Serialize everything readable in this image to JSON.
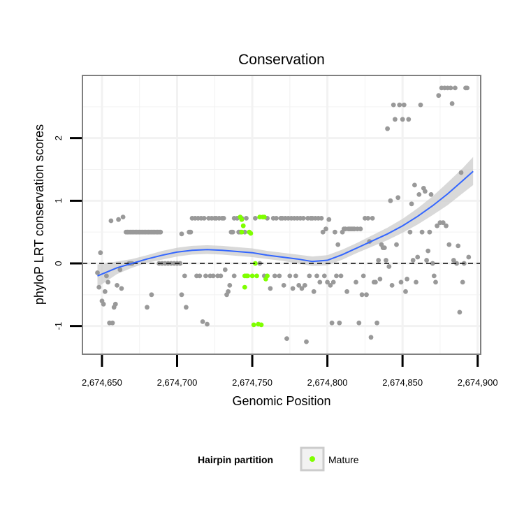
{
  "chart_data": {
    "type": "scatter",
    "title": "Conservation",
    "xlabel": "Genomic Position",
    "ylabel": "phyloP LRT conservation scores",
    "xlim": [
      2674637,
      2674902
    ],
    "ylim": [
      -1.45,
      3.0
    ],
    "x_ticks": [
      2674650,
      2674700,
      2674750,
      2674800,
      2674850,
      2674900
    ],
    "x_tick_labels": [
      "2,674,650",
      "2,674,700",
      "2,674,750",
      "2,674,800",
      "2,674,850",
      "2,674,900"
    ],
    "y_ticks": [
      -1,
      0,
      1,
      2
    ],
    "y_tick_labels": [
      "-1",
      "0",
      "1",
      "2"
    ],
    "grid": true,
    "reference_line": {
      "y": 0,
      "style": "dashed",
      "color": "#000000"
    },
    "colors": {
      "other_points": "#999999",
      "mature_points": "#7fff00",
      "smooth_line": "#3366ff",
      "confidence_band": "#cccccc",
      "panel_border": "#7f7f7f",
      "grid": "#f2f2f2"
    },
    "legend": {
      "title": "Hairpin partition",
      "placement": "bottom",
      "entries": [
        {
          "label": "Mature",
          "color": "#7fff00"
        }
      ]
    },
    "series": [
      {
        "name": "Other",
        "color": "#999999",
        "points": [
          [
            2674647,
            -0.15
          ],
          [
            2674648,
            -0.38
          ],
          [
            2674649,
            0.17
          ],
          [
            2674650,
            -0.6
          ],
          [
            2674651,
            -0.65
          ],
          [
            2674652,
            -0.45
          ],
          [
            2674653,
            -0.2
          ],
          [
            2674654,
            -0.3
          ],
          [
            2674655,
            -0.95
          ],
          [
            2674656,
            0.68
          ],
          [
            2674657,
            -0.95
          ],
          [
            2674658,
            -0.7
          ],
          [
            2674659,
            -0.65
          ],
          [
            2674660,
            -0.35
          ],
          [
            2674661,
            0.7
          ],
          [
            2674662,
            -0.1
          ],
          [
            2674663,
            -0.4
          ],
          [
            2674664,
            0.74
          ],
          [
            2674666,
            0.5
          ],
          [
            2674667,
            0.5
          ],
          [
            2674668,
            0.5
          ],
          [
            2674669,
            0.5
          ],
          [
            2674670,
            0.5
          ],
          [
            2674671,
            0.5
          ],
          [
            2674672,
            0.5
          ],
          [
            2674673,
            0.5
          ],
          [
            2674674,
            0.5
          ],
          [
            2674675,
            0.5
          ],
          [
            2674676,
            0.5
          ],
          [
            2674677,
            0.5
          ],
          [
            2674678,
            0.5
          ],
          [
            2674679,
            0.5
          ],
          [
            2674680,
            0.5
          ],
          [
            2674681,
            0.5
          ],
          [
            2674682,
            0.5
          ],
          [
            2674683,
            0.5
          ],
          [
            2674684,
            0.5
          ],
          [
            2674685,
            0.5
          ],
          [
            2674686,
            0.5
          ],
          [
            2674687,
            0.5
          ],
          [
            2674688,
            0.5
          ],
          [
            2674689,
            0.5
          ],
          [
            2674668,
            0.0
          ],
          [
            2674669,
            0.0
          ],
          [
            2674670,
            0.0
          ],
          [
            2674680,
            -0.7
          ],
          [
            2674683,
            -0.5
          ],
          [
            2674688,
            0.0
          ],
          [
            2674690,
            0.0
          ],
          [
            2674692,
            0.0
          ],
          [
            2674694,
            0.0
          ],
          [
            2674696,
            0.0
          ],
          [
            2674698,
            0.0
          ],
          [
            2674700,
            0.0
          ],
          [
            2674702,
            0.0
          ],
          [
            2674703,
            0.47
          ],
          [
            2674703,
            -0.5
          ],
          [
            2674705,
            -0.2
          ],
          [
            2674706,
            -0.7
          ],
          [
            2674708,
            0.5
          ],
          [
            2674709,
            0.5
          ],
          [
            2674710,
            0.72
          ],
          [
            2674712,
            0.72
          ],
          [
            2674713,
            -0.2
          ],
          [
            2674714,
            0.72
          ],
          [
            2674715,
            -0.2
          ],
          [
            2674716,
            0.72
          ],
          [
            2674717,
            -0.93
          ],
          [
            2674718,
            0.72
          ],
          [
            2674719,
            -0.2
          ],
          [
            2674720,
            -0.97
          ],
          [
            2674721,
            0.72
          ],
          [
            2674722,
            -0.2
          ],
          [
            2674723,
            0.72
          ],
          [
            2674724,
            -0.2
          ],
          [
            2674725,
            0.72
          ],
          [
            2674726,
            0.72
          ],
          [
            2674727,
            -0.2
          ],
          [
            2674728,
            0.72
          ],
          [
            2674729,
            -0.2
          ],
          [
            2674730,
            0.72
          ],
          [
            2674731,
            0.72
          ],
          [
            2674732,
            -0.1
          ],
          [
            2674733,
            -0.5
          ],
          [
            2674734,
            -0.45
          ],
          [
            2674735,
            -0.35
          ],
          [
            2674736,
            0.5
          ],
          [
            2674737,
            0.5
          ],
          [
            2674738,
            0.72
          ],
          [
            2674738,
            -0.2
          ],
          [
            2674740,
            0.72
          ],
          [
            2674741,
            0.5
          ],
          [
            2674742,
            0.5
          ],
          [
            2674743,
            0.72
          ],
          [
            2674745,
            0.5
          ],
          [
            2674746,
            0.72
          ],
          [
            2674752,
            0.72
          ],
          [
            2674755,
            0.0
          ],
          [
            2674758,
            -0.2
          ],
          [
            2674760,
            0.72
          ],
          [
            2674762,
            -0.4
          ],
          [
            2674764,
            0.72
          ],
          [
            2674765,
            -0.2
          ],
          [
            2674766,
            0.72
          ],
          [
            2674768,
            -0.2
          ],
          [
            2674769,
            0.72
          ],
          [
            2674770,
            0.72
          ],
          [
            2674771,
            -0.35
          ],
          [
            2674772,
            0.72
          ],
          [
            2674773,
            -1.2
          ],
          [
            2674774,
            0.72
          ],
          [
            2674775,
            -0.2
          ],
          [
            2674776,
            0.72
          ],
          [
            2674777,
            -0.4
          ],
          [
            2674778,
            0.72
          ],
          [
            2674779,
            -0.2
          ],
          [
            2674780,
            0.72
          ],
          [
            2674781,
            -0.35
          ],
          [
            2674782,
            0.72
          ],
          [
            2674783,
            -0.4
          ],
          [
            2674784,
            0.72
          ],
          [
            2674785,
            -0.35
          ],
          [
            2674786,
            -1.25
          ],
          [
            2674787,
            0.72
          ],
          [
            2674788,
            -0.2
          ],
          [
            2674789,
            0.72
          ],
          [
            2674790,
            0.72
          ],
          [
            2674791,
            -0.45
          ],
          [
            2674792,
            0.72
          ],
          [
            2674793,
            -0.2
          ],
          [
            2674794,
            0.72
          ],
          [
            2674795,
            -0.3
          ],
          [
            2674796,
            0.72
          ],
          [
            2674797,
            0.5
          ],
          [
            2674798,
            -0.2
          ],
          [
            2674799,
            0.55
          ],
          [
            2674800,
            -0.3
          ],
          [
            2674801,
            0.7
          ],
          [
            2674802,
            -0.35
          ],
          [
            2674803,
            -0.95
          ],
          [
            2674804,
            -0.3
          ],
          [
            2674805,
            0.5
          ],
          [
            2674806,
            -0.2
          ],
          [
            2674807,
            0.3
          ],
          [
            2674808,
            -0.95
          ],
          [
            2674809,
            -0.2
          ],
          [
            2674810,
            0.5
          ],
          [
            2674811,
            0.55
          ],
          [
            2674812,
            0.55
          ],
          [
            2674813,
            -0.45
          ],
          [
            2674814,
            0.55
          ],
          [
            2674815,
            0.55
          ],
          [
            2674816,
            0.55
          ],
          [
            2674817,
            0.55
          ],
          [
            2674818,
            0.55
          ],
          [
            2674819,
            -0.3
          ],
          [
            2674820,
            0.55
          ],
          [
            2674821,
            -0.95
          ],
          [
            2674822,
            0.55
          ],
          [
            2674823,
            -0.5
          ],
          [
            2674824,
            -0.2
          ],
          [
            2674825,
            0.72
          ],
          [
            2674826,
            -0.5
          ],
          [
            2674827,
            0.72
          ],
          [
            2674828,
            0.35
          ],
          [
            2674829,
            -1.18
          ],
          [
            2674830,
            0.72
          ],
          [
            2674831,
            -0.3
          ],
          [
            2674832,
            -0.3
          ],
          [
            2674833,
            -0.95
          ],
          [
            2674834,
            0.05
          ],
          [
            2674835,
            -0.25
          ],
          [
            2674836,
            0.3
          ],
          [
            2674837,
            0.25
          ],
          [
            2674838,
            0.25
          ],
          [
            2674839,
            0.05
          ],
          [
            2674840,
            2.15
          ],
          [
            2674841,
            -0.05
          ],
          [
            2674842,
            1.0
          ],
          [
            2674843,
            -0.35
          ],
          [
            2674844,
            2.53
          ],
          [
            2674845,
            2.3
          ],
          [
            2674846,
            0.3
          ],
          [
            2674847,
            1.05
          ],
          [
            2674848,
            2.53
          ],
          [
            2674849,
            -0.3
          ],
          [
            2674850,
            2.3
          ],
          [
            2674851,
            2.53
          ],
          [
            2674852,
            -0.45
          ],
          [
            2674853,
            -0.25
          ],
          [
            2674854,
            2.3
          ],
          [
            2674855,
            0.5
          ],
          [
            2674856,
            0.95
          ],
          [
            2674857,
            0.05
          ],
          [
            2674858,
            1.25
          ],
          [
            2674859,
            -0.3
          ],
          [
            2674860,
            0.1
          ],
          [
            2674861,
            1.1
          ],
          [
            2674862,
            2.53
          ],
          [
            2674863,
            0.5
          ],
          [
            2674864,
            1.2
          ],
          [
            2674865,
            1.15
          ],
          [
            2674866,
            0.05
          ],
          [
            2674867,
            0.2
          ],
          [
            2674868,
            0.5
          ],
          [
            2674869,
            1.1
          ],
          [
            2674870,
            0.0
          ],
          [
            2674871,
            -0.2
          ],
          [
            2674872,
            -0.3
          ],
          [
            2674873,
            0.6
          ],
          [
            2674874,
            2.68
          ],
          [
            2674875,
            0.65
          ],
          [
            2674876,
            2.8
          ],
          [
            2674877,
            0.65
          ],
          [
            2674878,
            2.8
          ],
          [
            2674879,
            0.6
          ],
          [
            2674880,
            2.8
          ],
          [
            2674881,
            0.3
          ],
          [
            2674882,
            2.8
          ],
          [
            2674883,
            2.55
          ],
          [
            2674884,
            0.05
          ],
          [
            2674885,
            2.8
          ],
          [
            2674886,
            0.0
          ],
          [
            2674887,
            0.28
          ],
          [
            2674888,
            -0.78
          ],
          [
            2674889,
            1.45
          ],
          [
            2674890,
            -0.3
          ],
          [
            2674891,
            0.0
          ],
          [
            2674892,
            2.8
          ],
          [
            2674893,
            2.8
          ],
          [
            2674894,
            0.1
          ]
        ]
      },
      {
        "name": "Mature",
        "color": "#7fff00",
        "points": [
          [
            2674742,
            0.74
          ],
          [
            2674743,
            0.7
          ],
          [
            2674743,
            0.5
          ],
          [
            2674744,
            0.6
          ],
          [
            2674745,
            -0.2
          ],
          [
            2674745,
            -0.38
          ],
          [
            2674746,
            -0.2
          ],
          [
            2674747,
            -0.2
          ],
          [
            2674748,
            0.5
          ],
          [
            2674749,
            0.48
          ],
          [
            2674750,
            -0.2
          ],
          [
            2674751,
            -0.98
          ],
          [
            2674752,
            0.0
          ],
          [
            2674753,
            -0.2
          ],
          [
            2674754,
            -0.97
          ],
          [
            2674755,
            0.74
          ],
          [
            2674756,
            -0.98
          ],
          [
            2674757,
            0.74
          ],
          [
            2674758,
            0.74
          ],
          [
            2674759,
            -0.25
          ],
          [
            2674760,
            -0.2
          ]
        ]
      }
    ],
    "smooth": {
      "x": [
        2674647,
        2674660,
        2674670,
        2674680,
        2674690,
        2674700,
        2674710,
        2674720,
        2674730,
        2674740,
        2674750,
        2674760,
        2674770,
        2674780,
        2674790,
        2674800,
        2674810,
        2674820,
        2674830,
        2674840,
        2674850,
        2674860,
        2674870,
        2674880,
        2674890,
        2674897
      ],
      "y": [
        -0.2,
        -0.07,
        0.0,
        0.07,
        0.13,
        0.18,
        0.21,
        0.22,
        0.21,
        0.19,
        0.17,
        0.13,
        0.1,
        0.07,
        0.03,
        0.05,
        0.14,
        0.25,
        0.36,
        0.47,
        0.6,
        0.75,
        0.92,
        1.11,
        1.32,
        1.47
      ],
      "ymin": [
        -0.38,
        -0.17,
        -0.07,
        0.01,
        0.06,
        0.11,
        0.14,
        0.15,
        0.14,
        0.12,
        0.1,
        0.07,
        0.04,
        0.0,
        -0.04,
        -0.03,
        0.06,
        0.17,
        0.27,
        0.37,
        0.49,
        0.62,
        0.77,
        0.93,
        1.12,
        1.25
      ],
      "ymax": [
        -0.02,
        0.03,
        0.07,
        0.13,
        0.2,
        0.25,
        0.28,
        0.29,
        0.28,
        0.26,
        0.24,
        0.2,
        0.17,
        0.14,
        0.11,
        0.13,
        0.22,
        0.33,
        0.45,
        0.57,
        0.71,
        0.88,
        1.07,
        1.29,
        1.52,
        1.7
      ]
    }
  }
}
